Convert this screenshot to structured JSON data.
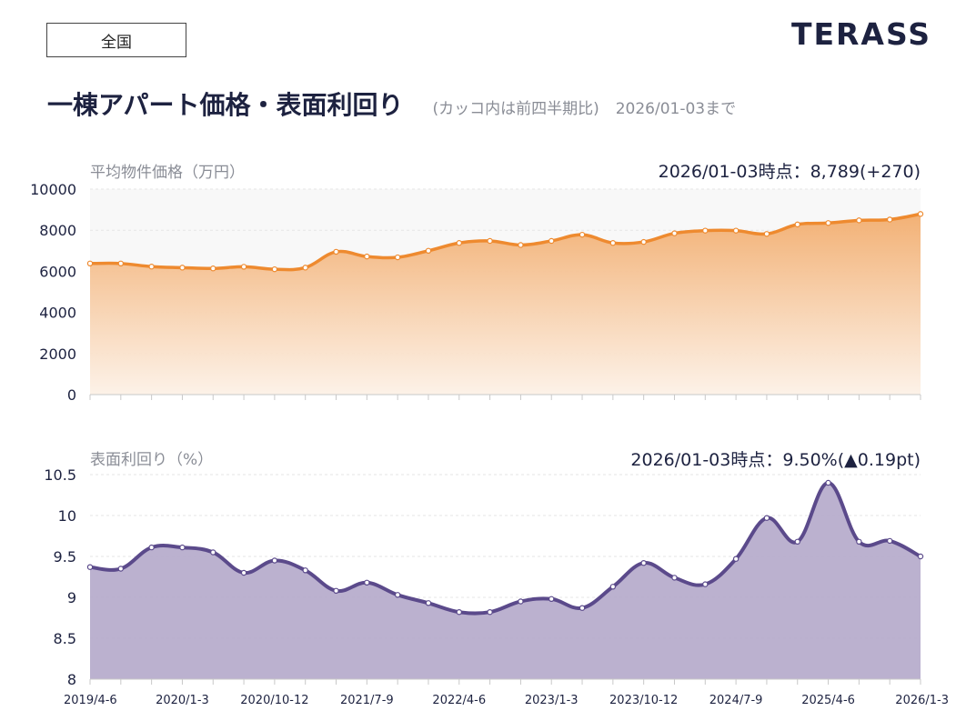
{
  "region_label": "全国",
  "logo_text": "TERASS",
  "title": "一棟アパート価格・表面利回り",
  "subtitle_note": "(カッコ内は前四半期比)",
  "as_of": "2026/01-03まで",
  "colors": {
    "price_line": "#ee8a2f",
    "price_fill_top": "#f2b47c",
    "yield_line": "#5b4a8b",
    "yield_fill": "#b4a8ca",
    "text": "#1d2240",
    "muted": "#8a8d96"
  },
  "chart_data": [
    {
      "type": "area",
      "title": "平均物件価格（万円）",
      "callout": "2026/01-03時点：8,789(+270)",
      "ylim": [
        0,
        10000
      ],
      "yticks": [
        "0",
        "2000",
        "4000",
        "6000",
        "8000",
        "10000"
      ],
      "ytick_values": [
        0,
        2000,
        4000,
        6000,
        8000,
        10000
      ],
      "grid": true,
      "series": [
        {
          "values": [
            6380,
            6380,
            6230,
            6180,
            6140,
            6220,
            6100,
            6180,
            6950,
            6720,
            6680,
            7000,
            7380,
            7480,
            7280,
            7480,
            7780,
            7380,
            7430,
            7850,
            7980,
            7980,
            7820,
            8280,
            8350,
            8480,
            8520,
            8789
          ]
        }
      ]
    },
    {
      "type": "area",
      "title": "表面利回り（%）",
      "callout_prefix": "2026/01-03時点：9.50%(",
      "callout_arrow": "▲",
      "callout_suffix": "0.19pt)",
      "ylim": [
        8,
        10.5
      ],
      "yticks": [
        "8",
        "8.5",
        "9",
        "9.5",
        "10",
        "10.5"
      ],
      "ytick_values": [
        8,
        8.5,
        9,
        9.5,
        10,
        10.5
      ],
      "grid": true,
      "x_tick_labels": [
        "2019/4-6",
        "2020/1-3",
        "2020/10-12",
        "2021/7-9",
        "2022/4-6",
        "2023/1-3",
        "2023/10-12",
        "2024/7-9",
        "2025/4-6",
        "2026/1-3"
      ],
      "x_tick_label_index": [
        0,
        3,
        6,
        9,
        12,
        15,
        18,
        21,
        24,
        27
      ],
      "series": [
        {
          "values": [
            9.37,
            9.35,
            9.61,
            9.61,
            9.55,
            9.3,
            9.45,
            9.33,
            9.08,
            9.18,
            9.03,
            8.93,
            8.82,
            8.82,
            8.95,
            8.98,
            8.87,
            9.13,
            9.42,
            9.24,
            9.16,
            9.47,
            9.97,
            9.68,
            10.4,
            9.68,
            9.69,
            9.5
          ]
        }
      ]
    }
  ]
}
